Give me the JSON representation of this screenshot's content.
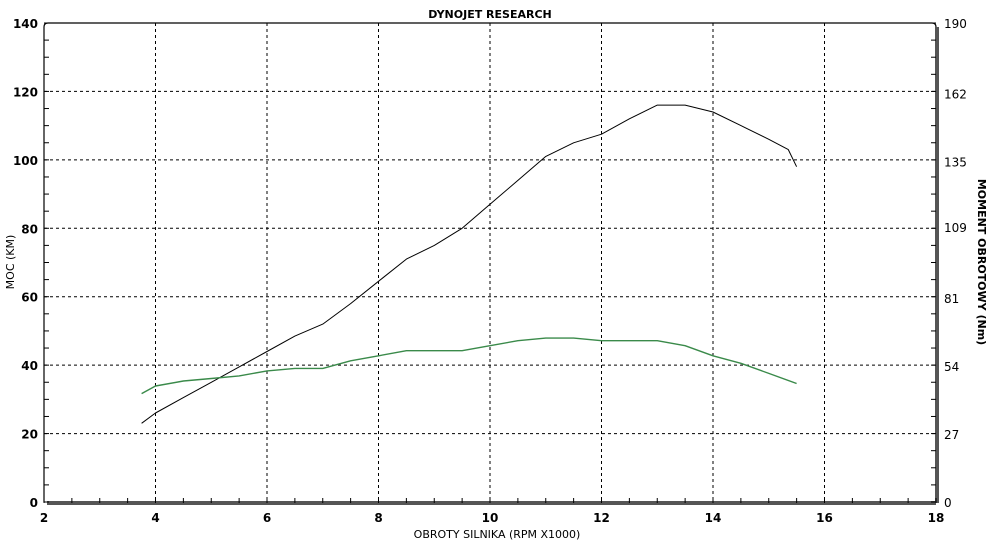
{
  "chart_data": {
    "type": "line",
    "title": "DYNOJET RESEARCH",
    "xlabel": "OBROTY SILNIKA (RPM X1000)",
    "ylabel": "MOC (KM)",
    "y2label": "MOMENT OBROTOWY (Nm)",
    "xlim": [
      2,
      18
    ],
    "ylim": [
      0,
      140
    ],
    "y2lim": [
      0,
      190
    ],
    "xticks": [
      "2",
      "4",
      "6",
      "8",
      "10",
      "12",
      "14",
      "16",
      "18"
    ],
    "yticks": [
      "0",
      "20",
      "40",
      "60",
      "80",
      "100",
      "120",
      "140"
    ],
    "y2ticks": [
      "0",
      "27",
      "54",
      "81",
      "109",
      "135",
      "162",
      "190"
    ],
    "grid": true,
    "series": [
      {
        "axis": "left",
        "color": "#000000",
        "x": [
          3.75,
          4,
          4.5,
          5,
          5.5,
          6,
          6.5,
          7,
          7.5,
          8,
          8.5,
          9,
          9.5,
          10,
          10.5,
          11,
          11.5,
          12,
          12.5,
          13,
          13.5,
          14,
          14.5,
          15,
          15.35,
          15.5
        ],
        "y": [
          23,
          26,
          30.5,
          35,
          39.5,
          44,
          48.5,
          52,
          58,
          64.5,
          71,
          75,
          80,
          87,
          94,
          101,
          105,
          107.5,
          112,
          116,
          116,
          114,
          110,
          106,
          103,
          98
        ]
      },
      {
        "axis": "right",
        "color": "#3a8a4a",
        "x": [
          3.75,
          4,
          4.5,
          5,
          5.5,
          6,
          6.5,
          7,
          7.5,
          8,
          8.5,
          9,
          9.5,
          10,
          10.5,
          11,
          11.5,
          12,
          12.5,
          13,
          13.5,
          14,
          14.5,
          15,
          15.5
        ],
        "y": [
          43,
          46,
          48,
          49,
          50,
          52,
          53,
          53,
          56,
          58,
          60,
          60,
          60,
          62,
          64,
          65,
          65,
          64,
          64,
          64,
          62,
          58,
          55,
          51,
          47
        ]
      }
    ]
  }
}
